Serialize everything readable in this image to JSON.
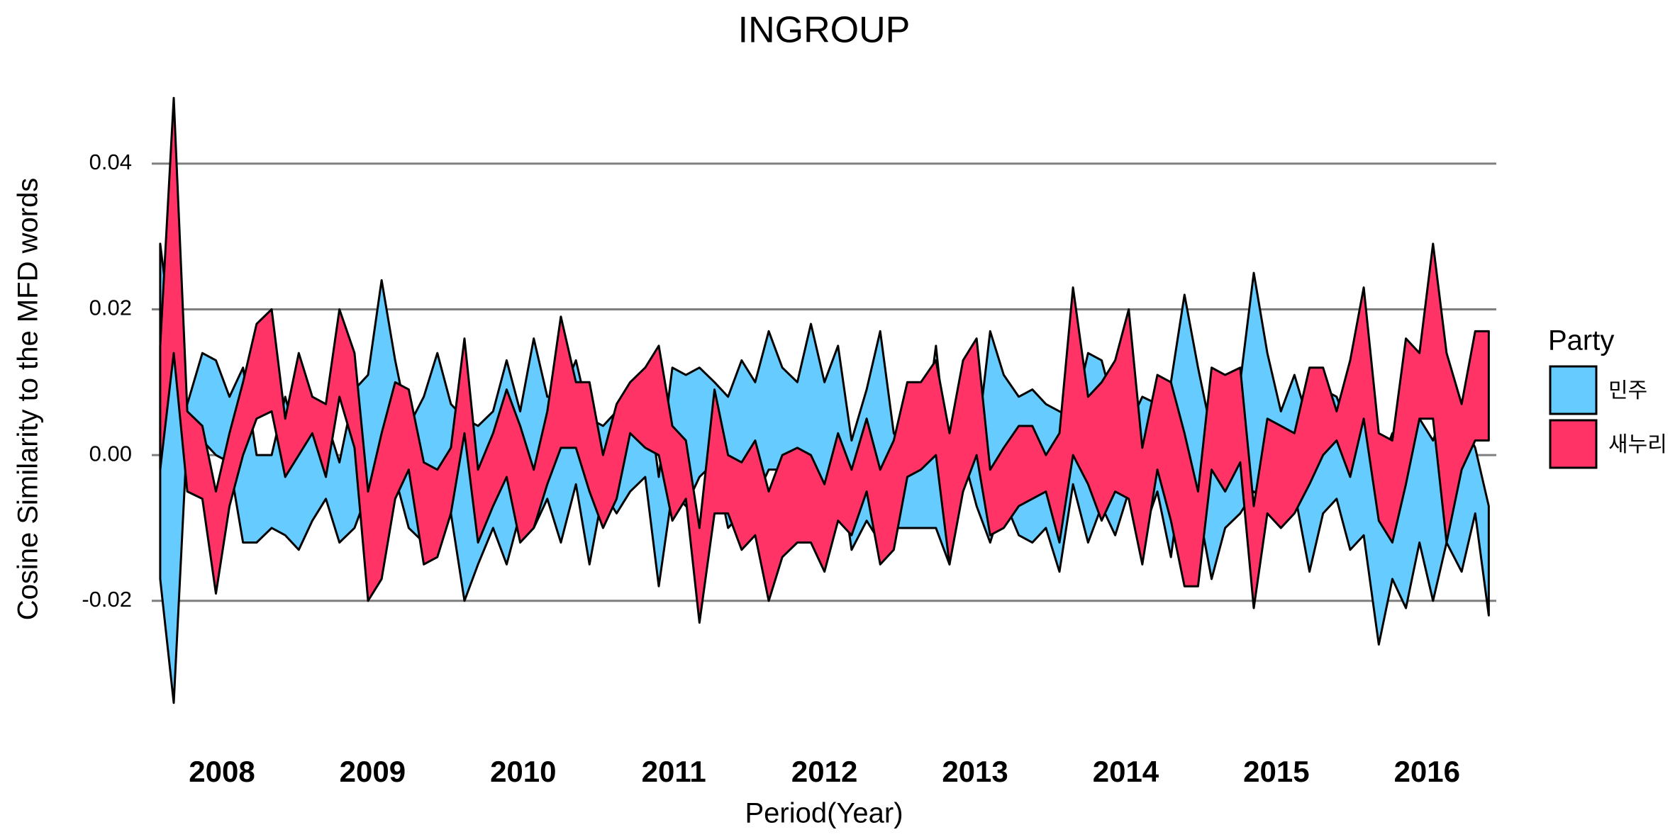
{
  "chart_data": {
    "type": "ribbon",
    "title": "INGROUP",
    "x_label": "Period(Year)",
    "y_label": "Cosine Similarity to the MFD words",
    "legend_title": "Party",
    "legend_position": "right",
    "grid": true,
    "xlim": [
      2007.534,
      2016.46
    ],
    "xticks": [
      2008,
      2009,
      2010,
      2011,
      2012,
      2013,
      2014,
      2015,
      2016
    ],
    "ylim": [
      -0.035,
      0.05
    ],
    "yticks": [
      -0.02,
      {
        "value": 0,
        "label": "0.00"
      },
      0.02,
      0.04
    ],
    "x": [
      2007.59,
      2007.68,
      2007.77,
      2007.87,
      2007.96,
      2008.05,
      2008.14,
      2008.23,
      2008.33,
      2008.42,
      2008.51,
      2008.6,
      2008.69,
      2008.78,
      2008.88,
      2008.97,
      2009.06,
      2009.15,
      2009.24,
      2009.34,
      2009.43,
      2009.52,
      2009.61,
      2009.7,
      2009.8,
      2009.89,
      2009.98,
      2010.07,
      2010.16,
      2010.25,
      2010.35,
      2010.44,
      2010.53,
      2010.62,
      2010.71,
      2010.81,
      2010.9,
      2010.99,
      2011.08,
      2011.17,
      2011.27,
      2011.36,
      2011.45,
      2011.54,
      2011.63,
      2011.72,
      2011.82,
      2011.91,
      2012.0,
      2012.09,
      2012.18,
      2012.28,
      2012.37,
      2012.46,
      2012.55,
      2012.64,
      2012.74,
      2012.83,
      2012.92,
      2013.01,
      2013.1,
      2013.19,
      2013.29,
      2013.38,
      2013.47,
      2013.56,
      2013.65,
      2013.75,
      2013.84,
      2013.93,
      2014.02,
      2014.11,
      2014.21,
      2014.3,
      2014.39,
      2014.48,
      2014.57,
      2014.66,
      2014.76,
      2014.85,
      2014.94,
      2015.03,
      2015.12,
      2015.22,
      2015.31,
      2015.4,
      2015.49,
      2015.58,
      2015.68,
      2015.77,
      2015.86,
      2015.95,
      2016.04,
      2016.13,
      2016.23,
      2016.32,
      2016.41
    ],
    "series": [
      {
        "name": "민주",
        "color": "#66ccff",
        "lower": [
          -0.017,
          -0.034,
          0.003,
          0.002,
          0,
          -0.001,
          -0.012,
          -0.012,
          -0.01,
          -0.011,
          -0.013,
          -0.009,
          -0.006,
          -0.012,
          -0.01,
          -0.005,
          0.002,
          -0.003,
          -0.01,
          -0.012,
          -0.01,
          -0.008,
          -0.02,
          -0.015,
          -0.01,
          -0.015,
          -0.008,
          -0.01,
          -0.006,
          -0.012,
          -0.004,
          -0.015,
          -0.005,
          -0.008,
          -0.005,
          -0.003,
          -0.018,
          -0.005,
          -0.007,
          -0.003,
          -0.001,
          -0.01,
          -0.008,
          -0.006,
          -0.002,
          -0.002,
          -0.005,
          -0.007,
          -0.01,
          0,
          -0.013,
          -0.009,
          -0.012,
          -0.01,
          -0.01,
          -0.01,
          -0.01,
          -0.015,
          0,
          -0.007,
          -0.012,
          -0.006,
          -0.011,
          -0.012,
          -0.01,
          -0.016,
          -0.004,
          -0.012,
          -0.007,
          -0.011,
          -0.005,
          -0.011,
          -0.005,
          -0.014,
          0,
          -0.007,
          -0.017,
          -0.01,
          -0.008,
          -0.005,
          -0.006,
          -0.01,
          -0.005,
          -0.016,
          -0.008,
          -0.006,
          -0.013,
          -0.011,
          -0.026,
          -0.017,
          -0.021,
          -0.012,
          -0.02,
          -0.012,
          -0.016,
          -0.008,
          -0.022
        ],
        "upper": [
          0.029,
          0.014,
          0.007,
          0.014,
          0.013,
          0.008,
          0.012,
          0,
          0,
          0.008,
          0.001,
          0.003,
          0.005,
          -0.001,
          0.009,
          0.011,
          0.024,
          0.013,
          0.004,
          0.008,
          0.014,
          0.007,
          0.005,
          0.004,
          0.006,
          0.013,
          0.006,
          0.016,
          0.008,
          0.008,
          0.013,
          0.005,
          0.004,
          0.006,
          0.008,
          0.011,
          -0.003,
          0.012,
          0.011,
          0.012,
          0.01,
          0.008,
          0.013,
          0.01,
          0.017,
          0.012,
          0.01,
          0.018,
          0.01,
          0.015,
          0.002,
          0.009,
          0.017,
          0.003,
          0,
          -0.001,
          0.015,
          -0.003,
          0.009,
          0.001,
          0.017,
          0.011,
          0.008,
          0.009,
          0.007,
          0.006,
          0.005,
          0.014,
          0.013,
          0.006,
          0.004,
          0.008,
          0.007,
          0.01,
          0.022,
          0.012,
          0.003,
          0.009,
          0.01,
          0.025,
          0.014,
          0.006,
          0.011,
          0.004,
          0.009,
          0.008,
          0.003,
          0.009,
          -0.002,
          0.003,
          0.002,
          0.005,
          0.002,
          0.007,
          0.005,
          0.001,
          -0.007
        ]
      },
      {
        "name": "새누리",
        "color": "#ff3366",
        "lower": [
          -0.002,
          0.014,
          -0.005,
          -0.006,
          -0.019,
          -0.007,
          0,
          0.005,
          0.006,
          -0.003,
          0,
          0.003,
          -0.003,
          0.008,
          0.001,
          -0.02,
          -0.017,
          -0.006,
          -0.002,
          -0.015,
          -0.014,
          -0.008,
          0.003,
          -0.012,
          -0.007,
          -0.003,
          -0.012,
          -0.01,
          -0.004,
          0.001,
          0.001,
          -0.005,
          -0.01,
          -0.006,
          0.003,
          0.001,
          0,
          -0.009,
          -0.006,
          -0.023,
          -0.008,
          -0.008,
          -0.013,
          -0.011,
          -0.02,
          -0.014,
          -0.012,
          -0.012,
          -0.016,
          -0.009,
          -0.011,
          -0.005,
          -0.015,
          -0.013,
          -0.003,
          -0.002,
          0,
          -0.015,
          -0.005,
          0,
          -0.011,
          -0.01,
          -0.007,
          -0.006,
          -0.005,
          -0.012,
          0,
          -0.004,
          -0.009,
          -0.005,
          -0.006,
          -0.015,
          -0.002,
          -0.009,
          -0.018,
          -0.018,
          -0.002,
          -0.005,
          -0.001,
          -0.021,
          -0.008,
          -0.01,
          -0.008,
          -0.004,
          0,
          0.002,
          -0.003,
          0.005,
          -0.009,
          -0.012,
          -0.004,
          0.005,
          0.005,
          -0.012,
          -0.002,
          0.002,
          0.002
        ],
        "upper": [
          0.015,
          0.049,
          0.006,
          0.004,
          -0.005,
          0.003,
          0.01,
          0.018,
          0.02,
          0.005,
          0.014,
          0.008,
          0.007,
          0.02,
          0.014,
          -0.005,
          0.003,
          0.01,
          0.009,
          -0.001,
          -0.002,
          0.001,
          0.016,
          -0.002,
          0.003,
          0.009,
          0.004,
          -0.002,
          0.006,
          0.019,
          0.01,
          0.01,
          0,
          0.007,
          0.01,
          0.012,
          0.015,
          0.004,
          0.002,
          -0.01,
          0.009,
          0,
          -0.001,
          0.002,
          -0.005,
          0,
          0.001,
          0,
          -0.004,
          0.003,
          -0.002,
          0.005,
          -0.002,
          0.002,
          0.01,
          0.01,
          0.013,
          0.003,
          0.013,
          0.016,
          -0.002,
          0.001,
          0.004,
          0.004,
          0,
          0.003,
          0.023,
          0.008,
          0.01,
          0.013,
          0.02,
          0.001,
          0.011,
          0.01,
          0.003,
          -0.005,
          0.012,
          0.011,
          0.012,
          -0.007,
          0.005,
          0.004,
          0.003,
          0.012,
          0.012,
          0.006,
          0.013,
          0.023,
          0.003,
          0.002,
          0.016,
          0.014,
          0.029,
          0.014,
          0.007,
          0.017,
          0.017
        ]
      }
    ]
  }
}
